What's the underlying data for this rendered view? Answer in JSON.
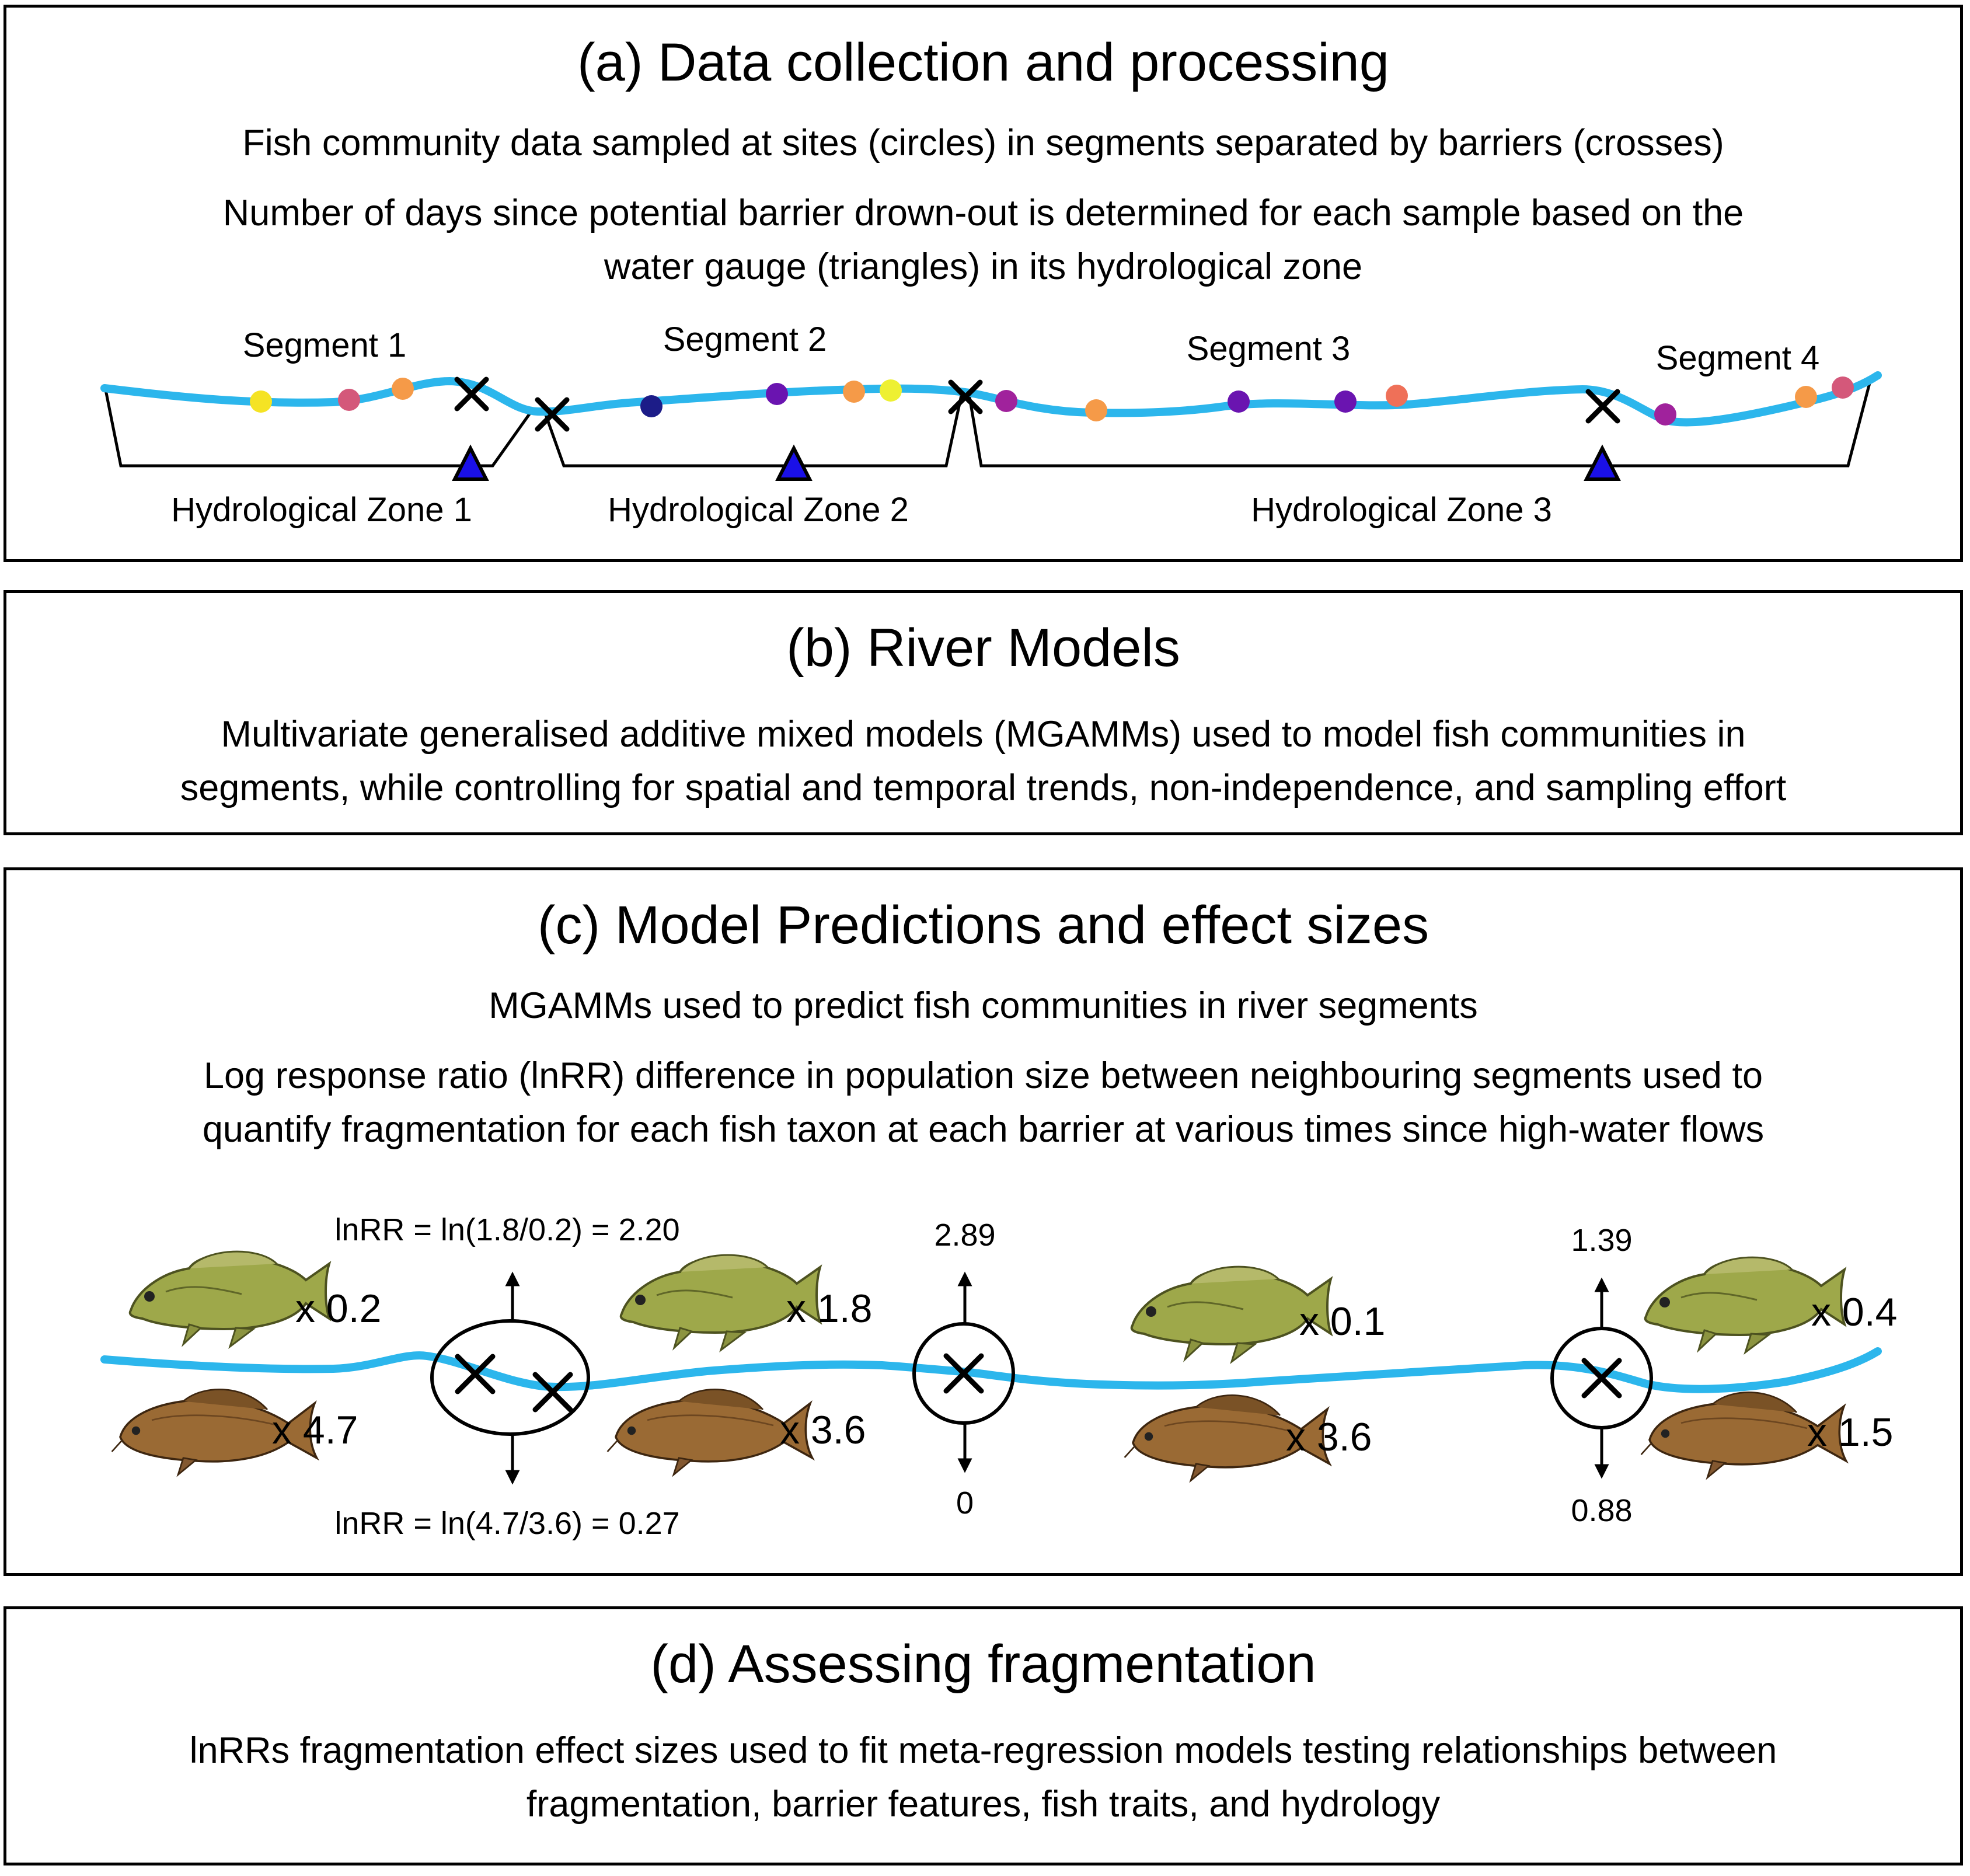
{
  "panel_a": {
    "title": "(a) Data collection and processing",
    "line1": "Fish community data sampled at sites (circles) in segments separated by barriers (crosses)",
    "line2": "Number of days since potential barrier drown-out is determined for each sample based on the",
    "line3": "water gauge (triangles) in its hydrological zone",
    "segments": [
      "Segment 1",
      "Segment 2",
      "Segment 3",
      "Segment 4"
    ],
    "zones": [
      "Hydrological Zone 1",
      "Hydrological Zone 2",
      "Hydrological Zone 3"
    ],
    "colors": {
      "river": "#2cb6ec",
      "gauge": "#1a10e8",
      "site_yellow": "#f5e324",
      "site_pink": "#d4587a",
      "site_orange": "#f59a48",
      "site_navy": "#1c1c88",
      "site_purple": "#6a14b0",
      "site_lightyellow": "#eef032",
      "site_violet": "#a0229c",
      "site_coral": "#ef7058"
    }
  },
  "panel_b": {
    "title": "(b) River Models",
    "line1": "Multivariate generalised additive mixed models (MGAMMs) used to model fish communities in",
    "line2": "segments, while controlling for spatial and temporal trends, non-independence, and sampling effort"
  },
  "panel_c": {
    "title": "(c) Model Predictions and effect sizes",
    "line1": "MGAMMs used to predict fish communities in river segments",
    "line2": "Log response ratio (lnRR) difference in population size between neighbouring segments used to",
    "line3": "quantify fragmentation for each fish taxon at each barrier at various times since high-water flows",
    "eq_top": "lnRR = ln(1.8/0.2) = 2.20",
    "eq_bottom": "lnRR = ln(4.7/3.6) = 0.27",
    "barrier2": {
      "top": "2.89",
      "bottom": "0"
    },
    "barrier3": {
      "top": "1.39",
      "bottom": "0.88"
    },
    "segments": [
      {
        "perch": "x 0.2",
        "carp": "x 4.7"
      },
      {
        "perch": "x 1.8",
        "carp": "x 3.6"
      },
      {
        "perch": "x 0.1",
        "carp": "x 3.6"
      },
      {
        "perch": "x 0.4",
        "carp": "x 1.5"
      }
    ]
  },
  "panel_d": {
    "title": "(d) Assessing fragmentation",
    "line1": "lnRRs fragmentation effect sizes used to fit meta-regression models testing relationships between",
    "line2": "fragmentation, barrier features, fish traits, and hydrology"
  }
}
